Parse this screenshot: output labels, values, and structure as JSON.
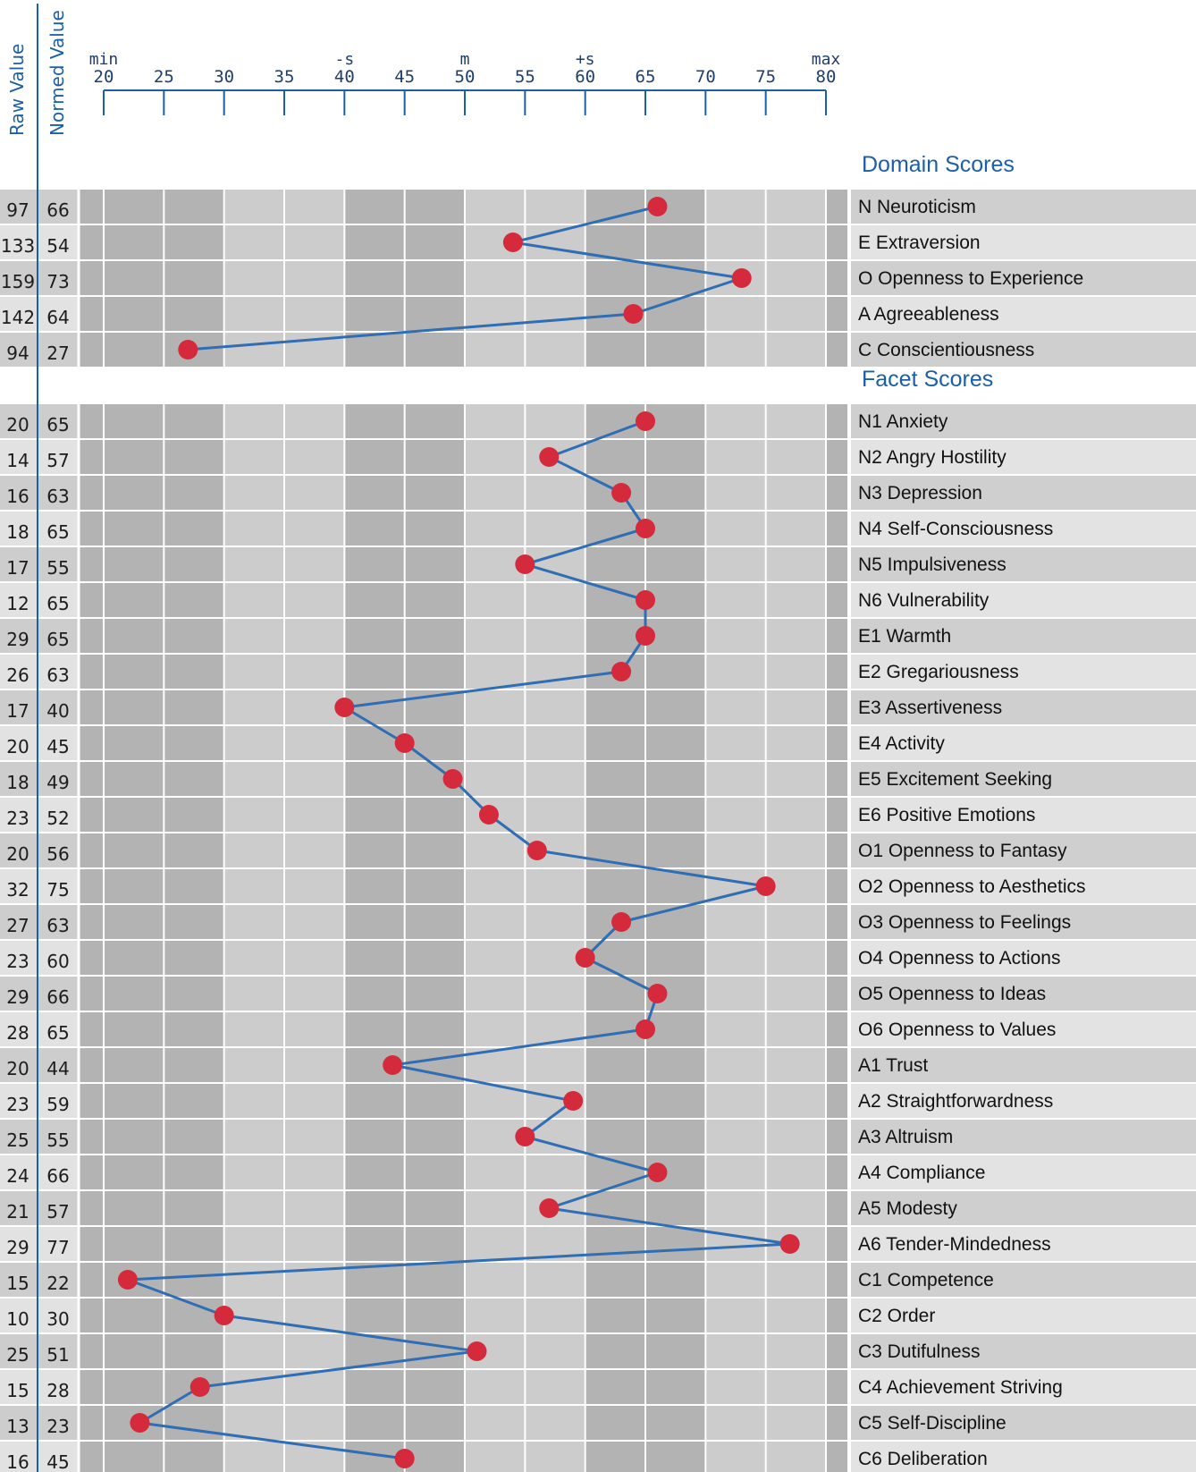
{
  "header": {
    "raw_label": "Raw Value",
    "normed_label": "Normed Value"
  },
  "chart_data": {
    "type": "line",
    "orientation": "horizontal",
    "xlim": [
      20,
      80
    ],
    "ticks": [
      20,
      25,
      30,
      35,
      40,
      45,
      50,
      55,
      60,
      65,
      70,
      75,
      80
    ],
    "tick_markers": [
      {
        "value": 20,
        "label": "min"
      },
      {
        "value": 40,
        "label": "-s"
      },
      {
        "value": 50,
        "label": "m"
      },
      {
        "value": 60,
        "label": "+s"
      },
      {
        "value": 80,
        "label": "max"
      }
    ],
    "sections": [
      {
        "title": "Domain Scores",
        "rows": [
          {
            "raw": "97",
            "normed": 66,
            "label": "N Neuroticism"
          },
          {
            "raw": "133",
            "normed": 54,
            "label": "E Extraversion"
          },
          {
            "raw": "159",
            "normed": 73,
            "label": "O Openness to Experience"
          },
          {
            "raw": "142",
            "normed": 64,
            "label": "A Agreeableness"
          },
          {
            "raw": "94",
            "normed": 27,
            "label": "C Conscientiousness"
          }
        ]
      },
      {
        "title": "Facet Scores",
        "rows": [
          {
            "raw": "20",
            "normed": 65,
            "label": "N1 Anxiety"
          },
          {
            "raw": "14",
            "normed": 57,
            "label": "N2 Angry Hostility"
          },
          {
            "raw": "16",
            "normed": 63,
            "label": "N3 Depression"
          },
          {
            "raw": "18",
            "normed": 65,
            "label": "N4 Self-Consciousness"
          },
          {
            "raw": "17",
            "normed": 55,
            "label": "N5 Impulsiveness"
          },
          {
            "raw": "12",
            "normed": 65,
            "label": "N6 Vulnerability"
          },
          {
            "raw": "29",
            "normed": 65,
            "label": "E1 Warmth"
          },
          {
            "raw": "26",
            "normed": 63,
            "label": "E2 Gregariousness"
          },
          {
            "raw": "17",
            "normed": 40,
            "label": "E3 Assertiveness"
          },
          {
            "raw": "20",
            "normed": 45,
            "label": "E4 Activity"
          },
          {
            "raw": "18",
            "normed": 49,
            "label": "E5 Excitement Seeking"
          },
          {
            "raw": "23",
            "normed": 52,
            "label": "E6 Positive Emotions"
          },
          {
            "raw": "20",
            "normed": 56,
            "label": "O1 Openness to Fantasy"
          },
          {
            "raw": "32",
            "normed": 75,
            "label": "O2 Openness to Aesthetics"
          },
          {
            "raw": "27",
            "normed": 63,
            "label": "O3 Openness to Feelings"
          },
          {
            "raw": "23",
            "normed": 60,
            "label": "O4 Openness to Actions"
          },
          {
            "raw": "29",
            "normed": 66,
            "label": "O5 Openness to Ideas"
          },
          {
            "raw": "28",
            "normed": 65,
            "label": "O6 Openness to Values"
          },
          {
            "raw": "20",
            "normed": 44,
            "label": "A1 Trust"
          },
          {
            "raw": "23",
            "normed": 59,
            "label": "A2 Straightforwardness"
          },
          {
            "raw": "25",
            "normed": 55,
            "label": "A3 Altruism"
          },
          {
            "raw": "24",
            "normed": 66,
            "label": "A4 Compliance"
          },
          {
            "raw": "21",
            "normed": 57,
            "label": "A5 Modesty"
          },
          {
            "raw": "29",
            "normed": 77,
            "label": "A6 Tender-Mindedness"
          },
          {
            "raw": "15",
            "normed": 22,
            "label": "C1 Competence"
          },
          {
            "raw": "10",
            "normed": 30,
            "label": "C2 Order"
          },
          {
            "raw": "25",
            "normed": 51,
            "label": "C3 Dutifulness"
          },
          {
            "raw": "15",
            "normed": 28,
            "label": "C4 Achievement Striving"
          },
          {
            "raw": "13",
            "normed": 23,
            "label": "C5 Self-Discipline"
          },
          {
            "raw": "16",
            "normed": 45,
            "label": "C6 Deliberation"
          }
        ]
      }
    ],
    "colors": {
      "accent": "#1a5fa8",
      "line": "#2f6db5",
      "marker": "#d42a3c",
      "band_dark": "#b3b3b3",
      "band_light": "#cccccc",
      "label_dark": "#cfcfcf",
      "label_light": "#e3e3e3"
    }
  }
}
